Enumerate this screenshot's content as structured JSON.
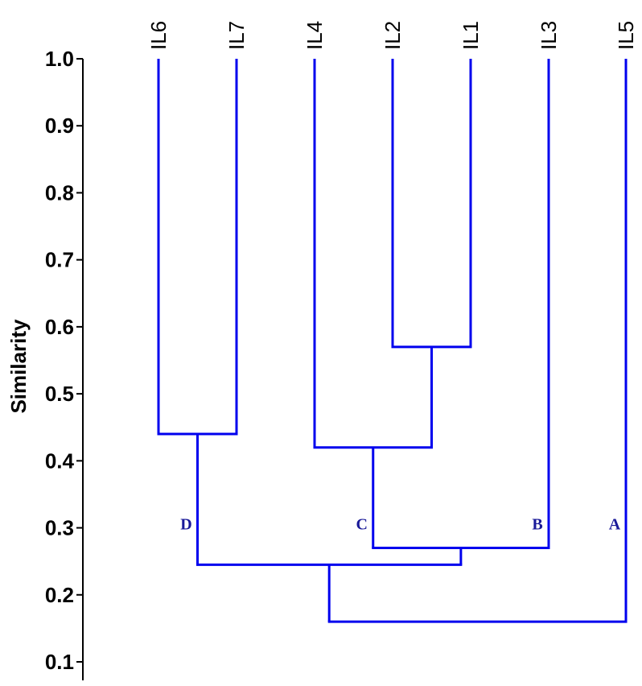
{
  "chart_data": {
    "type": "dendrogram",
    "ylabel": "Similarity",
    "ylim": [
      0.1,
      1.0
    ],
    "yticks": [
      "0.1",
      "0.2",
      "0.3",
      "0.4",
      "0.5",
      "0.6",
      "0.7",
      "0.8",
      "0.9",
      "1.0"
    ],
    "ytick_values": [
      0.1,
      0.2,
      0.3,
      0.4,
      0.5,
      0.6,
      0.7,
      0.8,
      0.9,
      1.0
    ],
    "leaves": [
      "IL6",
      "IL7",
      "IL4",
      "IL2",
      "IL1",
      "IL3",
      "IL5"
    ],
    "merges": [
      {
        "left": "IL2",
        "right": "IL1",
        "similarity": 0.57
      },
      {
        "left": "IL6",
        "right": "IL7",
        "similarity": 0.44
      },
      {
        "left": "IL4",
        "right": "IL2+IL1",
        "similarity": 0.42
      },
      {
        "left": "IL4+IL2+IL1",
        "right": "IL3",
        "similarity": 0.27
      },
      {
        "left": "IL6+IL7",
        "right": "IL4+IL2+IL1+IL3",
        "similarity": 0.245
      },
      {
        "left": "IL6+IL7+IL4+IL2+IL1+IL3",
        "right": "IL5",
        "similarity": 0.16
      }
    ],
    "cluster_labels": [
      {
        "text": "D",
        "near": "IL6+IL7",
        "similarity": 0.3
      },
      {
        "text": "C",
        "near": "IL4+IL2+IL1",
        "similarity": 0.3
      },
      {
        "text": "B",
        "near": "IL3",
        "similarity": 0.3
      },
      {
        "text": "A",
        "near": "IL5",
        "similarity": 0.3
      }
    ],
    "colors": {
      "tree": "#0000ee",
      "cluster_label": "#1a1a99",
      "axis": "#000000"
    }
  }
}
